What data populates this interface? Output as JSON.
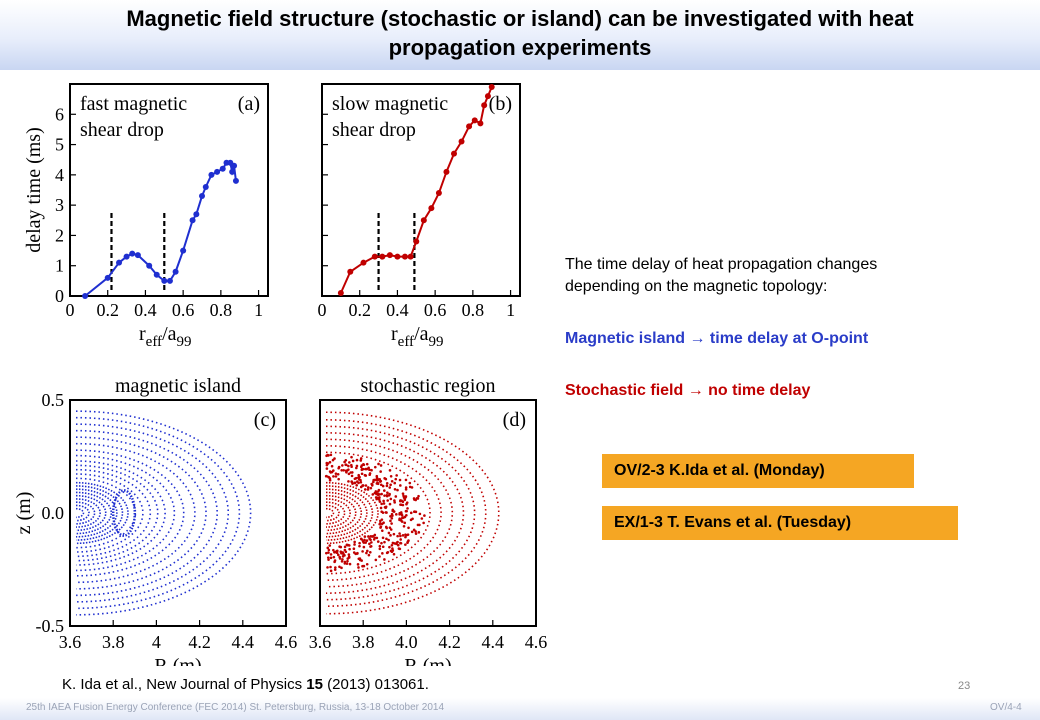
{
  "slide": {
    "title_line1": "Magnetic field structure (stochastic or island) can be investigated with heat",
    "title_line2": "propagation experiments",
    "text_line1": "The time delay of heat propagation changes",
    "text_line2": "depending on the magnetic topology:",
    "island_line": "Magnetic island → time delay at O-point",
    "stochastic_line": "Stochastic field → no time delay",
    "tag1": "OV/2-3  K.Ida et al. (Monday)",
    "tag2": "EX/1-3  T. Evans et al. (Tuesday)",
    "citation_pre": "K. Ida et al., New Journal of Physics ",
    "citation_vol": "15",
    "citation_post": " (2013) 013061.",
    "page_number": "23",
    "footer_left": "25th IAEA Fusion Energy Conference (FEC 2014) St. Petersburg, Russia, 13-18 October 2014",
    "footer_right": "OV/4-4"
  },
  "chart_data": [
    {
      "type": "line",
      "panel": "(a)",
      "annotation_line1": "fast magnetic",
      "annotation_line2": "shear drop",
      "ylabel": "delay time (ms)",
      "xlabel": "r",
      "xlabel_sub1": "eff",
      "xlabel_mid": "/a",
      "xlabel_sub2": "99",
      "xlim": [
        0,
        1.05
      ],
      "ylim": [
        0,
        7
      ],
      "xticks": [
        0,
        0.2,
        0.4,
        0.6,
        0.8,
        1
      ],
      "xtick_labels": [
        "0",
        "0.2",
        "0.4",
        "0.6",
        "0.8",
        "1"
      ],
      "yticks": [
        0,
        1,
        2,
        3,
        4,
        5,
        6
      ],
      "ytick_labels": [
        "0",
        "1",
        "2",
        "3",
        "4",
        "5",
        "6"
      ],
      "color": "#1f2fd0",
      "x": [
        0.08,
        0.2,
        0.26,
        0.3,
        0.33,
        0.36,
        0.42,
        0.46,
        0.5,
        0.53,
        0.56,
        0.6,
        0.65,
        0.67,
        0.7,
        0.72,
        0.75,
        0.78,
        0.81,
        0.83,
        0.85,
        0.86,
        0.87,
        0.88
      ],
      "y": [
        0,
        0.6,
        1.1,
        1.3,
        1.4,
        1.35,
        1.0,
        0.7,
        0.5,
        0.5,
        0.8,
        1.5,
        2.5,
        2.7,
        3.3,
        3.6,
        4.0,
        4.1,
        4.2,
        4.4,
        4.4,
        4.1,
        4.3,
        3.8
      ],
      "dashed_x": [
        0.22,
        0.5
      ]
    },
    {
      "type": "line",
      "panel": "(b)",
      "annotation_line1": "slow magnetic",
      "annotation_line2": "shear drop",
      "ylabel": "",
      "xlabel": "r",
      "xlabel_sub1": "eff",
      "xlabel_mid": "/a",
      "xlabel_sub2": "99",
      "xlim": [
        0,
        1.05
      ],
      "ylim": [
        0,
        7
      ],
      "xticks": [
        0,
        0.2,
        0.4,
        0.6,
        0.8,
        1
      ],
      "xtick_labels": [
        "0",
        "0.2",
        "0.4",
        "0.6",
        "0.8",
        "1"
      ],
      "yticks": [
        0,
        1,
        2,
        3,
        4,
        5,
        6
      ],
      "color": "#c00000",
      "x": [
        0.1,
        0.15,
        0.22,
        0.28,
        0.32,
        0.36,
        0.4,
        0.44,
        0.47,
        0.5,
        0.54,
        0.58,
        0.62,
        0.66,
        0.7,
        0.74,
        0.78,
        0.81,
        0.84,
        0.86,
        0.88,
        0.9
      ],
      "y": [
        0.1,
        0.8,
        1.1,
        1.3,
        1.3,
        1.35,
        1.3,
        1.3,
        1.3,
        1.8,
        2.5,
        2.9,
        3.4,
        4.1,
        4.7,
        5.1,
        5.6,
        5.8,
        5.7,
        6.3,
        6.6,
        6.9
      ],
      "dashed_x": [
        0.3,
        0.49
      ]
    },
    {
      "type": "scatter",
      "panel": "(c)",
      "title": "magnetic island",
      "xlabel": "R (m)",
      "ylabel": "z (m)",
      "xlim": [
        3.6,
        4.6
      ],
      "ylim": [
        -0.5,
        0.5
      ],
      "xticks": [
        3.6,
        3.8,
        4.0,
        4.2,
        4.4,
        4.6
      ],
      "xtick_labels": [
        "3.6",
        "3.8",
        "4",
        "4.2",
        "4.4",
        "4.6"
      ],
      "ytick_labels": [
        "0.5",
        "0.0",
        "-0.5"
      ],
      "color": "#1f2fd0",
      "flux_surfaces": [
        0.04,
        0.07,
        0.1,
        0.13,
        0.16,
        0.19,
        0.22,
        0.25,
        0.28,
        0.32,
        0.36,
        0.4,
        0.44,
        0.48,
        0.53,
        0.58,
        0.64,
        0.7,
        0.76,
        0.82,
        0.88,
        0.94
      ],
      "island": {
        "R": 3.85,
        "z": 0.0,
        "dR": 0.05,
        "dz": 0.1
      }
    },
    {
      "type": "scatter",
      "panel": "(d)",
      "title": "stochastic region",
      "xlabel": "R (m)",
      "ylabel": "",
      "xlim": [
        3.6,
        4.6
      ],
      "ylim": [
        -0.5,
        0.5
      ],
      "xticks": [
        3.6,
        3.8,
        4.0,
        4.2,
        4.4,
        4.6
      ],
      "xtick_labels": [
        "3.6",
        "3.8",
        "4.0",
        "4.2",
        "4.4",
        "4.6"
      ],
      "color": "#c00000",
      "flux_surfaces": [
        0.04,
        0.07,
        0.1,
        0.13,
        0.16,
        0.19,
        0.22,
        0.25,
        0.28,
        0.56,
        0.62,
        0.68,
        0.74,
        0.8,
        0.86,
        0.93
      ],
      "stochastic_band": [
        0.3,
        0.54
      ]
    }
  ]
}
